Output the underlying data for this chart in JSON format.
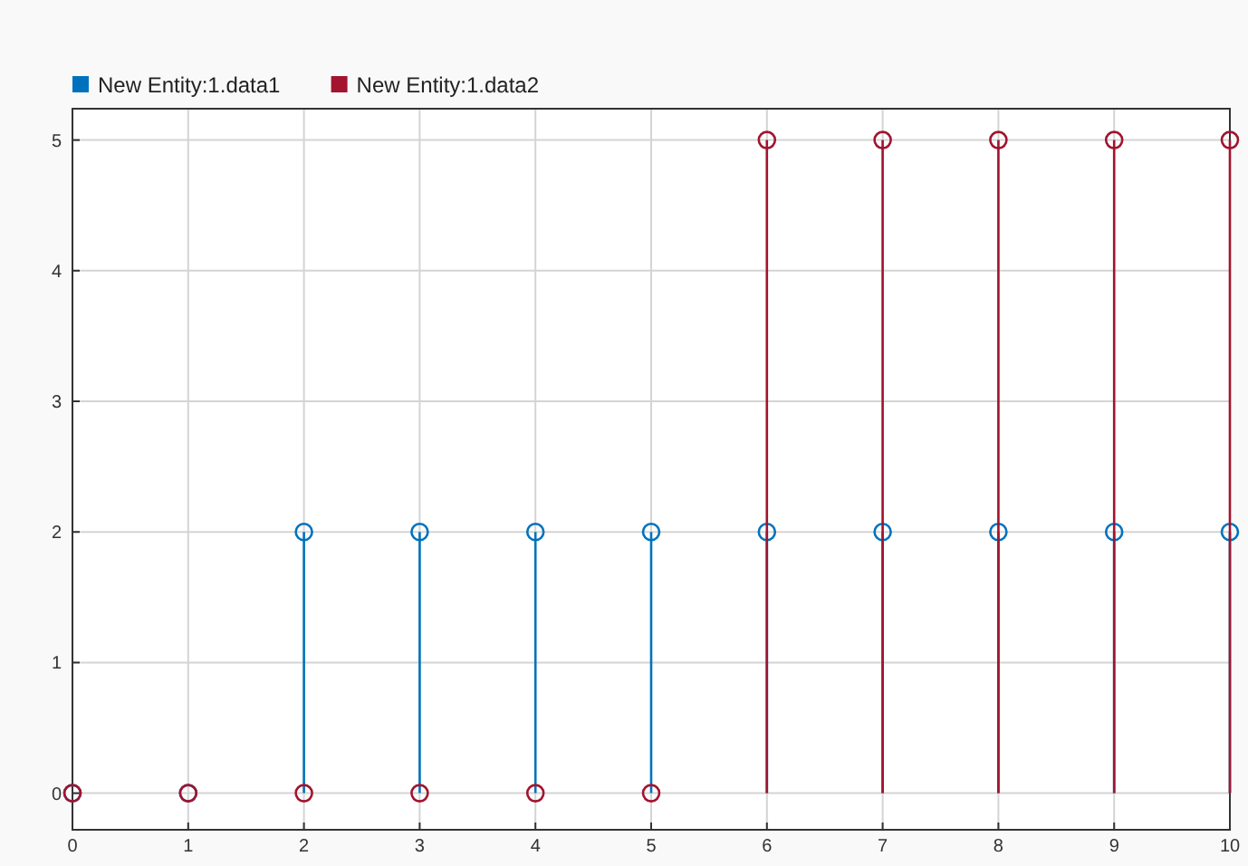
{
  "chart_data": {
    "type": "lollipop",
    "x": [
      0,
      1,
      2,
      3,
      4,
      5,
      6,
      7,
      8,
      9,
      10
    ],
    "series": [
      {
        "name": "New Entity:1.data1",
        "color": "#0072bd",
        "values": [
          0,
          0,
          2,
          2,
          2,
          2,
          2,
          2,
          2,
          2,
          2
        ]
      },
      {
        "name": "New Entity:1.data2",
        "color": "#a2142f",
        "values": [
          0,
          0,
          0,
          0,
          0,
          0,
          5,
          5,
          5,
          5,
          5
        ]
      }
    ],
    "xlim": [
      0,
      10
    ],
    "xticks": [
      0,
      1,
      2,
      3,
      4,
      5,
      6,
      7,
      8,
      9,
      10
    ],
    "ylim": [
      -0.28,
      5.24
    ],
    "yticks": [
      0,
      1,
      2,
      3,
      4,
      5
    ],
    "grid": true,
    "legend": "top left",
    "marker": "circle"
  }
}
